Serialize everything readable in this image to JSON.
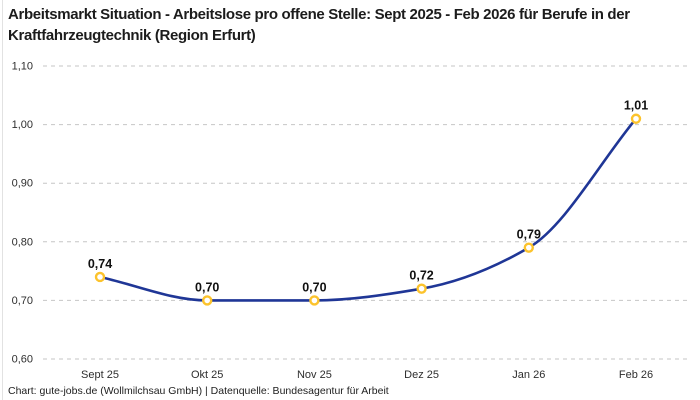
{
  "header": {
    "title": "Arbeitsmarkt Situation - Arbeitslose pro offene Stelle: Sept 2025 - Feb 2026 für Berufe in der Kraftfahrzeugtechnik (Region Erfurt)"
  },
  "footer": {
    "text": "Chart: gute-jobs.de (Wollmilchsau GmbH) | Datenquelle: Bundesagentur für Arbeit"
  },
  "chart_data": {
    "type": "line",
    "title": "Arbeitsmarkt Situation - Arbeitslose pro offene Stelle: Sept 2025 - Feb 2026 für Berufe in der Kraftfahrzeugtechnik (Region Erfurt)",
    "categories": [
      "Sept 25",
      "Okt 25",
      "Nov 25",
      "Dez 25",
      "Jan 26",
      "Feb 26"
    ],
    "values": [
      0.74,
      0.7,
      0.7,
      0.72,
      0.79,
      1.01
    ],
    "point_labels": [
      "0,74",
      "0,70",
      "0,70",
      "0,72",
      "0,79",
      "1,01"
    ],
    "xlabel": "",
    "ylabel": "",
    "ylim": [
      0.6,
      1.1
    ],
    "y_ticks": [
      {
        "value": 1.1,
        "label": "1,10"
      },
      {
        "value": 1.0,
        "label": "1,00"
      },
      {
        "value": 0.9,
        "label": "0,90"
      },
      {
        "value": 0.8,
        "label": "0,80"
      },
      {
        "value": 0.7,
        "label": "0,70"
      },
      {
        "value": 0.6,
        "label": "0,60"
      }
    ],
    "grid": "horizontal-dashed",
    "legend": "none",
    "curve": "monotone",
    "colors": {
      "line": "#1f3696",
      "marker_stroke": "#fcc32c",
      "marker_fill": "#ffffff",
      "grid": "#c6c6c6",
      "tick_text": "#2e2e2e",
      "point_label": "#111111",
      "title_text": "#1c1c1c"
    }
  }
}
